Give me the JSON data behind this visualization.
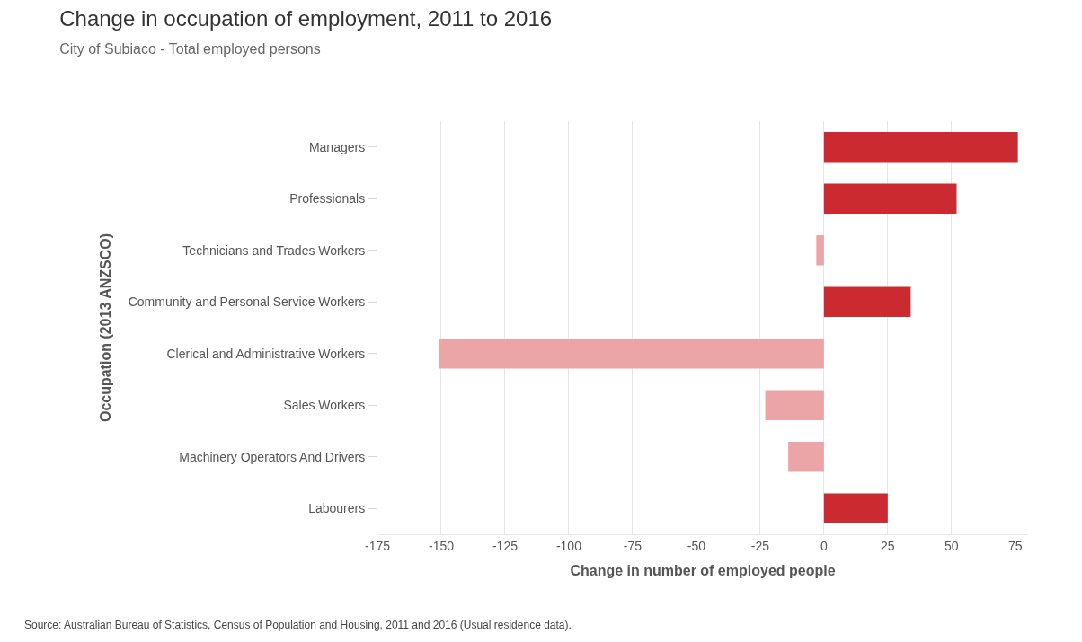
{
  "chart_data": {
    "type": "bar",
    "orientation": "horizontal",
    "title": "Change in occupation of employment, 2011 to 2016",
    "subtitle": "City of Subiaco - Total employed persons",
    "xlabel": "Change in number of employed people",
    "ylabel": "Occupation (2013 ANZSCO)",
    "categories": [
      "Managers",
      "Professionals",
      "Technicians and Trades Workers",
      "Community and Personal Service Workers",
      "Clerical and Administrative Workers",
      "Sales Workers",
      "Machinery Operators And Drivers",
      "Labourers"
    ],
    "values": [
      76,
      52,
      -3,
      34,
      -151,
      -23,
      -14,
      25
    ],
    "colors": [
      "#cc2a31",
      "#cc2a31",
      "#eba5a7",
      "#cc2a31",
      "#eba5a7",
      "#eba5a7",
      "#eba5a7",
      "#cc2a31"
    ],
    "xlim": [
      -175,
      80
    ],
    "xticks": [
      -175,
      -150,
      -125,
      -100,
      -75,
      -50,
      -25,
      0,
      25,
      50,
      75
    ],
    "grid": "x",
    "legend": false,
    "annotations": [
      "Source: Australian Bureau of Statistics, Census of Population and Housing, 2011 and 2016 (Usual residence data)."
    ]
  }
}
